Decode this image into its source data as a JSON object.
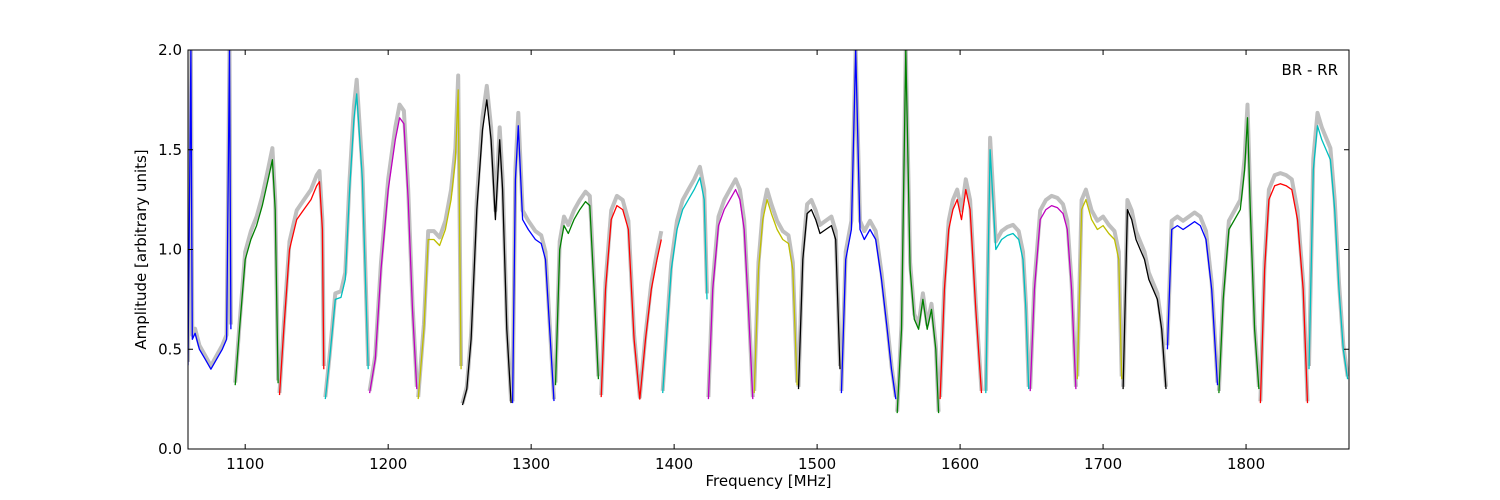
{
  "chart_data": {
    "type": "line",
    "title": "",
    "panel_label": "BR - RR",
    "xlabel": "Frequency [MHz]",
    "ylabel": "Amplitude [arbitrary units]",
    "xlim": [
      1060,
      1872
    ],
    "ylim": [
      0.0,
      2.0
    ],
    "x_ticks": [
      1100,
      1200,
      1300,
      1400,
      1500,
      1600,
      1700,
      1800
    ],
    "x_tick_labels": [
      "1100",
      "1200",
      "1300",
      "1400",
      "1500",
      "1600",
      "1700",
      "1800"
    ],
    "y_ticks": [
      0.0,
      0.5,
      1.0,
      1.5,
      2.0
    ],
    "y_tick_labels": [
      "0.0",
      "0.5",
      "1.0",
      "1.5",
      "2.0"
    ],
    "grid": false,
    "background_series_color": "#bfbfbf",
    "subbands": [
      {
        "color": "#0000ff",
        "x": [
          1060,
          1062,
          1063,
          1065,
          1068,
          1072,
          1076,
          1080,
          1084,
          1087,
          1089,
          1090
        ],
        "y": [
          0.42,
          2.0,
          0.55,
          0.58,
          0.5,
          0.45,
          0.4,
          0.45,
          0.5,
          0.55,
          2.0,
          0.6
        ]
      },
      {
        "color": "#008000",
        "x": [
          1093,
          1096,
          1100,
          1104,
          1108,
          1112,
          1116,
          1119,
          1121,
          1123
        ],
        "y": [
          0.32,
          0.6,
          0.95,
          1.05,
          1.12,
          1.22,
          1.35,
          1.45,
          1.2,
          0.33
        ]
      },
      {
        "color": "#ff0000",
        "x": [
          1124,
          1127,
          1131,
          1136,
          1141,
          1146,
          1150,
          1152,
          1154,
          1155
        ],
        "y": [
          0.27,
          0.6,
          1.0,
          1.15,
          1.2,
          1.25,
          1.32,
          1.34,
          1.1,
          0.4
        ]
      },
      {
        "color": "#00bfbf",
        "x": [
          1156,
          1159,
          1163,
          1167,
          1170,
          1173,
          1176,
          1178,
          1182,
          1186
        ],
        "y": [
          0.25,
          0.45,
          0.75,
          0.76,
          0.85,
          1.3,
          1.65,
          1.78,
          1.35,
          0.4
        ]
      },
      {
        "color": "#bf00bf",
        "x": [
          1187,
          1191,
          1195,
          1200,
          1205,
          1208,
          1211,
          1214,
          1217,
          1220
        ],
        "y": [
          0.28,
          0.45,
          0.9,
          1.3,
          1.55,
          1.66,
          1.63,
          1.25,
          0.7,
          0.3
        ]
      },
      {
        "color": "#bfbf00",
        "x": [
          1221,
          1225,
          1228,
          1232,
          1236,
          1240,
          1244,
          1247,
          1249,
          1251
        ],
        "y": [
          0.25,
          0.6,
          1.05,
          1.05,
          1.02,
          1.1,
          1.25,
          1.45,
          1.8,
          0.4
        ]
      },
      {
        "color": "#000000",
        "x": [
          1252,
          1255,
          1258,
          1262,
          1266,
          1269,
          1272,
          1275,
          1278,
          1280,
          1283,
          1286
        ],
        "y": [
          0.22,
          0.3,
          0.55,
          1.2,
          1.6,
          1.75,
          1.55,
          1.15,
          1.55,
          1.3,
          0.6,
          0.23
        ]
      },
      {
        "color": "#0000ff",
        "x": [
          1287,
          1289,
          1291,
          1294,
          1298,
          1303,
          1307,
          1310,
          1313,
          1316
        ],
        "y": [
          0.23,
          1.35,
          1.62,
          1.15,
          1.1,
          1.05,
          1.03,
          0.95,
          0.6,
          0.24
        ]
      },
      {
        "color": "#008000",
        "x": [
          1317,
          1320,
          1323,
          1326,
          1330,
          1334,
          1338,
          1341,
          1344,
          1347
        ],
        "y": [
          0.32,
          1.0,
          1.12,
          1.08,
          1.15,
          1.2,
          1.24,
          1.22,
          0.8,
          0.35
        ]
      },
      {
        "color": "#ff0000",
        "x": [
          1349,
          1352,
          1356,
          1360,
          1364,
          1368,
          1372,
          1376,
          1380,
          1384,
          1388,
          1391
        ],
        "y": [
          0.26,
          0.8,
          1.15,
          1.22,
          1.2,
          1.1,
          0.55,
          0.25,
          0.55,
          0.8,
          0.95,
          1.05
        ]
      },
      {
        "color": "#00bfbf",
        "x": [
          1392,
          1395,
          1398,
          1402,
          1406,
          1410,
          1414,
          1418,
          1421,
          1423
        ],
        "y": [
          0.28,
          0.6,
          0.9,
          1.1,
          1.2,
          1.25,
          1.3,
          1.36,
          1.25,
          0.75
        ]
      },
      {
        "color": "#bf00bf",
        "x": [
          1424,
          1427,
          1431,
          1435,
          1439,
          1443,
          1446,
          1449,
          1452,
          1455
        ],
        "y": [
          0.25,
          0.8,
          1.12,
          1.2,
          1.25,
          1.3,
          1.25,
          1.1,
          0.7,
          0.25
        ]
      },
      {
        "color": "#bfbf00",
        "x": [
          1456,
          1459,
          1462,
          1465,
          1468,
          1472,
          1476,
          1480,
          1483,
          1486
        ],
        "y": [
          0.28,
          0.9,
          1.15,
          1.25,
          1.18,
          1.1,
          1.05,
          1.03,
          0.9,
          0.32
        ]
      },
      {
        "color": "#000000",
        "x": [
          1487,
          1490,
          1493,
          1496,
          1499,
          1502,
          1506,
          1510,
          1513,
          1516
        ],
        "y": [
          0.3,
          0.95,
          1.18,
          1.2,
          1.15,
          1.08,
          1.1,
          1.12,
          1.05,
          0.4
        ]
      },
      {
        "color": "#0000ff",
        "x": [
          1517,
          1520,
          1524,
          1527,
          1530,
          1533,
          1537,
          1541,
          1545,
          1549,
          1552,
          1555
        ],
        "y": [
          0.28,
          0.95,
          1.1,
          2.0,
          1.1,
          1.05,
          1.1,
          1.05,
          0.85,
          0.6,
          0.4,
          0.25
        ]
      },
      {
        "color": "#008000",
        "x": [
          1556,
          1559,
          1562,
          1565,
          1568,
          1571,
          1574,
          1577,
          1580,
          1583,
          1585
        ],
        "y": [
          0.18,
          0.6,
          2.0,
          0.9,
          0.65,
          0.6,
          0.75,
          0.6,
          0.7,
          0.5,
          0.18
        ]
      },
      {
        "color": "#ff0000",
        "x": [
          1586,
          1589,
          1592,
          1595,
          1598,
          1601,
          1604,
          1607,
          1611,
          1615
        ],
        "y": [
          0.25,
          0.8,
          1.1,
          1.2,
          1.25,
          1.15,
          1.3,
          1.2,
          0.7,
          0.28
        ]
      },
      {
        "color": "#00bfbf",
        "x": [
          1618,
          1621,
          1625,
          1629,
          1633,
          1637,
          1641,
          1644,
          1646,
          1648
        ],
        "y": [
          0.28,
          1.5,
          1.0,
          1.05,
          1.07,
          1.08,
          1.05,
          0.95,
          0.7,
          0.3
        ]
      },
      {
        "color": "#bf00bf",
        "x": [
          1649,
          1652,
          1656,
          1660,
          1664,
          1668,
          1672,
          1675,
          1678,
          1681
        ],
        "y": [
          0.29,
          0.8,
          1.15,
          1.2,
          1.22,
          1.21,
          1.18,
          1.1,
          0.8,
          0.3
        ]
      },
      {
        "color": "#bfbf00",
        "x": [
          1682,
          1685,
          1688,
          1692,
          1696,
          1700,
          1704,
          1708,
          1711,
          1713
        ],
        "y": [
          0.35,
          1.2,
          1.25,
          1.15,
          1.1,
          1.12,
          1.08,
          1.05,
          0.95,
          0.35
        ]
      },
      {
        "color": "#000000",
        "x": [
          1714,
          1717,
          1720,
          1723,
          1726,
          1729,
          1732,
          1735,
          1738,
          1741,
          1744
        ],
        "y": [
          0.3,
          1.2,
          1.15,
          1.05,
          1.0,
          0.95,
          0.85,
          0.8,
          0.75,
          0.6,
          0.3
        ]
      },
      {
        "color": "#0000ff",
        "x": [
          1745,
          1748,
          1752,
          1756,
          1760,
          1764,
          1768,
          1772,
          1776,
          1780
        ],
        "y": [
          0.5,
          1.1,
          1.12,
          1.1,
          1.12,
          1.14,
          1.12,
          1.05,
          0.8,
          0.32
        ]
      },
      {
        "color": "#008000",
        "x": [
          1781,
          1784,
          1788,
          1792,
          1796,
          1799,
          1801,
          1803,
          1806,
          1809
        ],
        "y": [
          0.28,
          0.75,
          1.1,
          1.15,
          1.2,
          1.4,
          1.66,
          1.2,
          0.6,
          0.3
        ]
      },
      {
        "color": "#ff0000",
        "x": [
          1810,
          1813,
          1816,
          1820,
          1824,
          1828,
          1832,
          1836,
          1840,
          1843
        ],
        "y": [
          0.23,
          0.9,
          1.25,
          1.32,
          1.33,
          1.32,
          1.3,
          1.15,
          0.8,
          0.23
        ]
      },
      {
        "color": "#00bfbf",
        "x": [
          1844,
          1847,
          1850,
          1853,
          1856,
          1859,
          1862,
          1865,
          1868,
          1871
        ],
        "y": [
          0.4,
          1.4,
          1.62,
          1.55,
          1.5,
          1.45,
          1.2,
          0.8,
          0.5,
          0.35
        ]
      }
    ]
  }
}
